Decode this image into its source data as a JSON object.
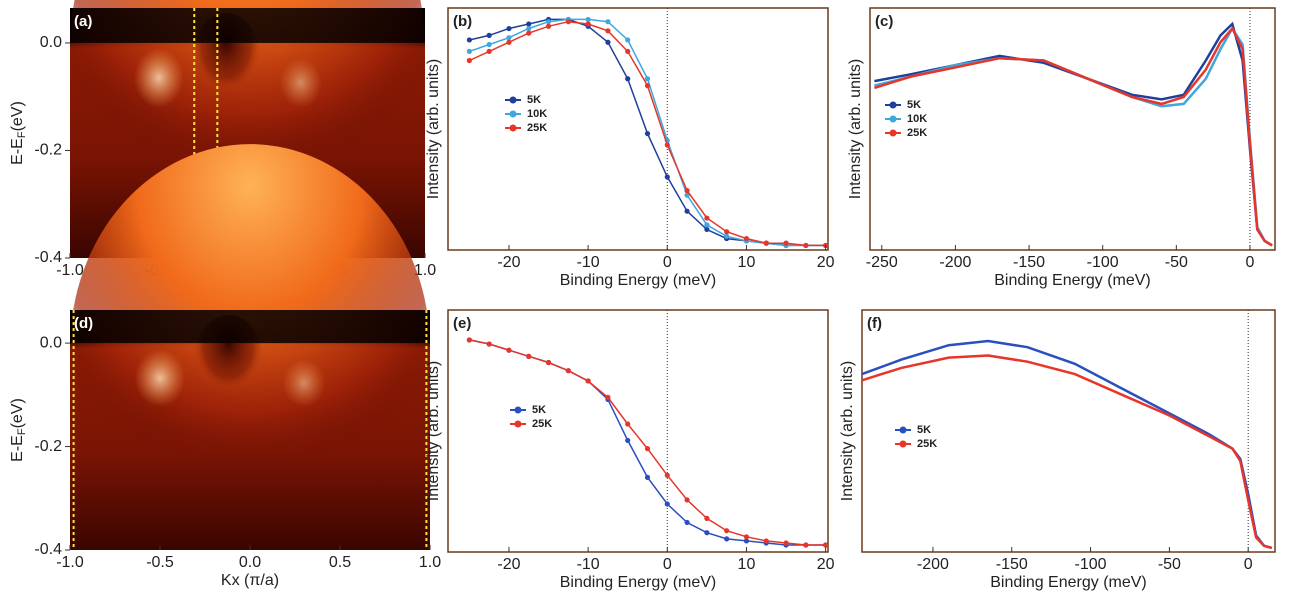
{
  "chart_data": [
    {
      "type": "heatmap",
      "panel_label": "(a)",
      "xlabel": "Kx (π/a)",
      "ylabel": [
        "E-E",
        "F",
        "(eV)"
      ],
      "xlim": [
        -1.0,
        1.0
      ],
      "ylim": [
        -0.4,
        0.065
      ],
      "xticks": [
        {
          "value": -1.0,
          "label": "-1.0"
        },
        -0.5,
        {
          "value": 0,
          "label": "0.0"
        },
        0.5,
        {
          "value": 1.0,
          "label": "1.0"
        }
      ],
      "yticks": [
        {
          "value": 0,
          "label": "0.0"
        },
        -0.2,
        -0.4
      ],
      "cut_lines": [
        -0.3,
        -0.17
      ],
      "cut_color": "#ffe23a"
    },
    {
      "type": "line",
      "panel_label": "(b)",
      "xlabel": "Binding Energy (meV)",
      "ylabel": "Intensity  (arb. units)",
      "xlim": [
        -27.7,
        20.3
      ],
      "ylim": [
        -0.01,
        1.05
      ],
      "xticks": [
        -20,
        -10,
        0,
        10,
        20
      ],
      "vline": 0,
      "markers": true,
      "x": [
        -25,
        -22.5,
        -20,
        -17.5,
        -15,
        -12.5,
        -10,
        -7.5,
        -5,
        -2.5,
        0,
        2.5,
        5,
        7.5,
        10,
        12.5,
        15,
        17.5,
        20
      ],
      "series": [
        {
          "name": "5K",
          "color": "#1f3f9c",
          "values": [
            0.91,
            0.93,
            0.96,
            0.98,
            1.0,
            1.0,
            0.97,
            0.9,
            0.74,
            0.5,
            0.31,
            0.16,
            0.08,
            0.04,
            0.03,
            0.02,
            0.01,
            0.01,
            0.01
          ]
        },
        {
          "name": "10K",
          "color": "#3ea7e0",
          "values": [
            0.86,
            0.89,
            0.92,
            0.96,
            0.99,
            1.0,
            1.0,
            0.99,
            0.91,
            0.74,
            0.47,
            0.23,
            0.1,
            0.05,
            0.03,
            0.02,
            0.01,
            0.01,
            0.01
          ]
        },
        {
          "name": "25K",
          "color": "#e8352a",
          "values": [
            0.82,
            0.86,
            0.9,
            0.94,
            0.97,
            0.99,
            0.98,
            0.95,
            0.86,
            0.71,
            0.45,
            0.25,
            0.13,
            0.07,
            0.04,
            0.02,
            0.02,
            0.01,
            0.01
          ]
        }
      ]
    },
    {
      "type": "line",
      "panel_label": "(c)",
      "xlabel": "Binding Energy (meV)",
      "ylabel": "Intensity  (arb. units)",
      "xlim": [
        -258,
        17
      ],
      "ylim": [
        -0.01,
        1.05
      ],
      "xticks": [
        -250,
        -200,
        -150,
        -100,
        -50,
        0
      ],
      "vline": 0,
      "markers": false,
      "x": [
        -255,
        -230,
        -200,
        -170,
        -140,
        -110,
        -80,
        -60,
        -45,
        -30,
        -20,
        -12,
        -5,
        0,
        5,
        10,
        15
      ],
      "series": [
        {
          "name": "5K",
          "color": "#1f3f9c",
          "values": [
            0.73,
            0.76,
            0.8,
            0.84,
            0.81,
            0.74,
            0.67,
            0.65,
            0.67,
            0.82,
            0.93,
            0.98,
            0.82,
            0.43,
            0.08,
            0.03,
            0.01
          ]
        },
        {
          "name": "10K",
          "color": "#3ea7e0",
          "values": [
            0.71,
            0.75,
            0.8,
            0.83,
            0.82,
            0.74,
            0.66,
            0.62,
            0.63,
            0.74,
            0.87,
            0.96,
            0.89,
            0.47,
            0.09,
            0.03,
            0.01
          ]
        },
        {
          "name": "25K",
          "color": "#e8352a",
          "values": [
            0.7,
            0.75,
            0.79,
            0.83,
            0.82,
            0.74,
            0.66,
            0.63,
            0.66,
            0.78,
            0.9,
            0.96,
            0.87,
            0.45,
            0.08,
            0.03,
            0.01
          ]
        }
      ]
    },
    {
      "type": "heatmap",
      "panel_label": "(d)",
      "xlabel": "Kx (π/a)",
      "ylabel": [
        "E-E",
        "F",
        "(eV)"
      ],
      "xlim": [
        -1.0,
        1.0
      ],
      "ylim": [
        -0.4,
        0.064
      ],
      "xticks": [
        {
          "value": -1.0,
          "label": "-1.0"
        },
        -0.5,
        {
          "value": 0,
          "label": "0.0"
        },
        0.5,
        {
          "value": 1.0,
          "label": "1.0"
        }
      ],
      "yticks": [
        {
          "value": 0,
          "label": "0.0"
        },
        -0.2,
        -0.4
      ],
      "cut_lines": [
        -0.98,
        0.98
      ],
      "cut_color": "#ffe23a"
    },
    {
      "type": "line",
      "panel_label": "(e)",
      "xlabel": "Binding Energy (meV)",
      "ylabel": "Intensity  (arb. units)",
      "xlim": [
        -27.7,
        20.3
      ],
      "ylim": [
        -0.034,
        1.146
      ],
      "xticks": [
        -20,
        -10,
        0,
        10,
        20
      ],
      "vline": 0,
      "markers": true,
      "x": [
        -25,
        -22.5,
        -20,
        -17.5,
        -15,
        -12.5,
        -10,
        -7.5,
        -5,
        -2.5,
        0,
        2.5,
        5,
        7.5,
        10,
        12.5,
        15,
        17.5,
        20
      ],
      "series": [
        {
          "name": "5K",
          "color": "#2a4fbf",
          "values": [
            1.0,
            0.98,
            0.95,
            0.92,
            0.89,
            0.85,
            0.8,
            0.71,
            0.51,
            0.33,
            0.2,
            0.11,
            0.06,
            0.03,
            0.02,
            0.01,
            0.0,
            0.0,
            0.0
          ]
        },
        {
          "name": "25K",
          "color": "#e8352a",
          "values": [
            1.0,
            0.98,
            0.95,
            0.92,
            0.89,
            0.85,
            0.8,
            0.72,
            0.59,
            0.47,
            0.34,
            0.22,
            0.13,
            0.07,
            0.04,
            0.02,
            0.01,
            0.0,
            0.0
          ]
        }
      ]
    },
    {
      "type": "line",
      "panel_label": "(f)",
      "xlabel": "Binding Energy (meV)",
      "ylabel": "Intensity  (arb. units)",
      "xlim": [
        -245,
        17
      ],
      "ylim": [
        -0.02,
        1.15
      ],
      "xticks": [
        -200,
        -150,
        -100,
        -50,
        0
      ],
      "vline": 0,
      "markers": false,
      "x": [
        -245,
        -220,
        -190,
        -165,
        -140,
        -110,
        -80,
        -50,
        -25,
        -10,
        -5,
        0,
        5,
        10,
        15
      ],
      "series": [
        {
          "name": "5K",
          "color": "#2a4fbf",
          "values": [
            0.84,
            0.91,
            0.98,
            1.0,
            0.97,
            0.89,
            0.77,
            0.65,
            0.55,
            0.48,
            0.43,
            0.26,
            0.06,
            0.01,
            0.0
          ]
        },
        {
          "name": "25K",
          "color": "#e8352a",
          "values": [
            0.81,
            0.87,
            0.92,
            0.93,
            0.9,
            0.84,
            0.74,
            0.64,
            0.54,
            0.48,
            0.42,
            0.23,
            0.05,
            0.01,
            0.0
          ]
        }
      ]
    }
  ]
}
